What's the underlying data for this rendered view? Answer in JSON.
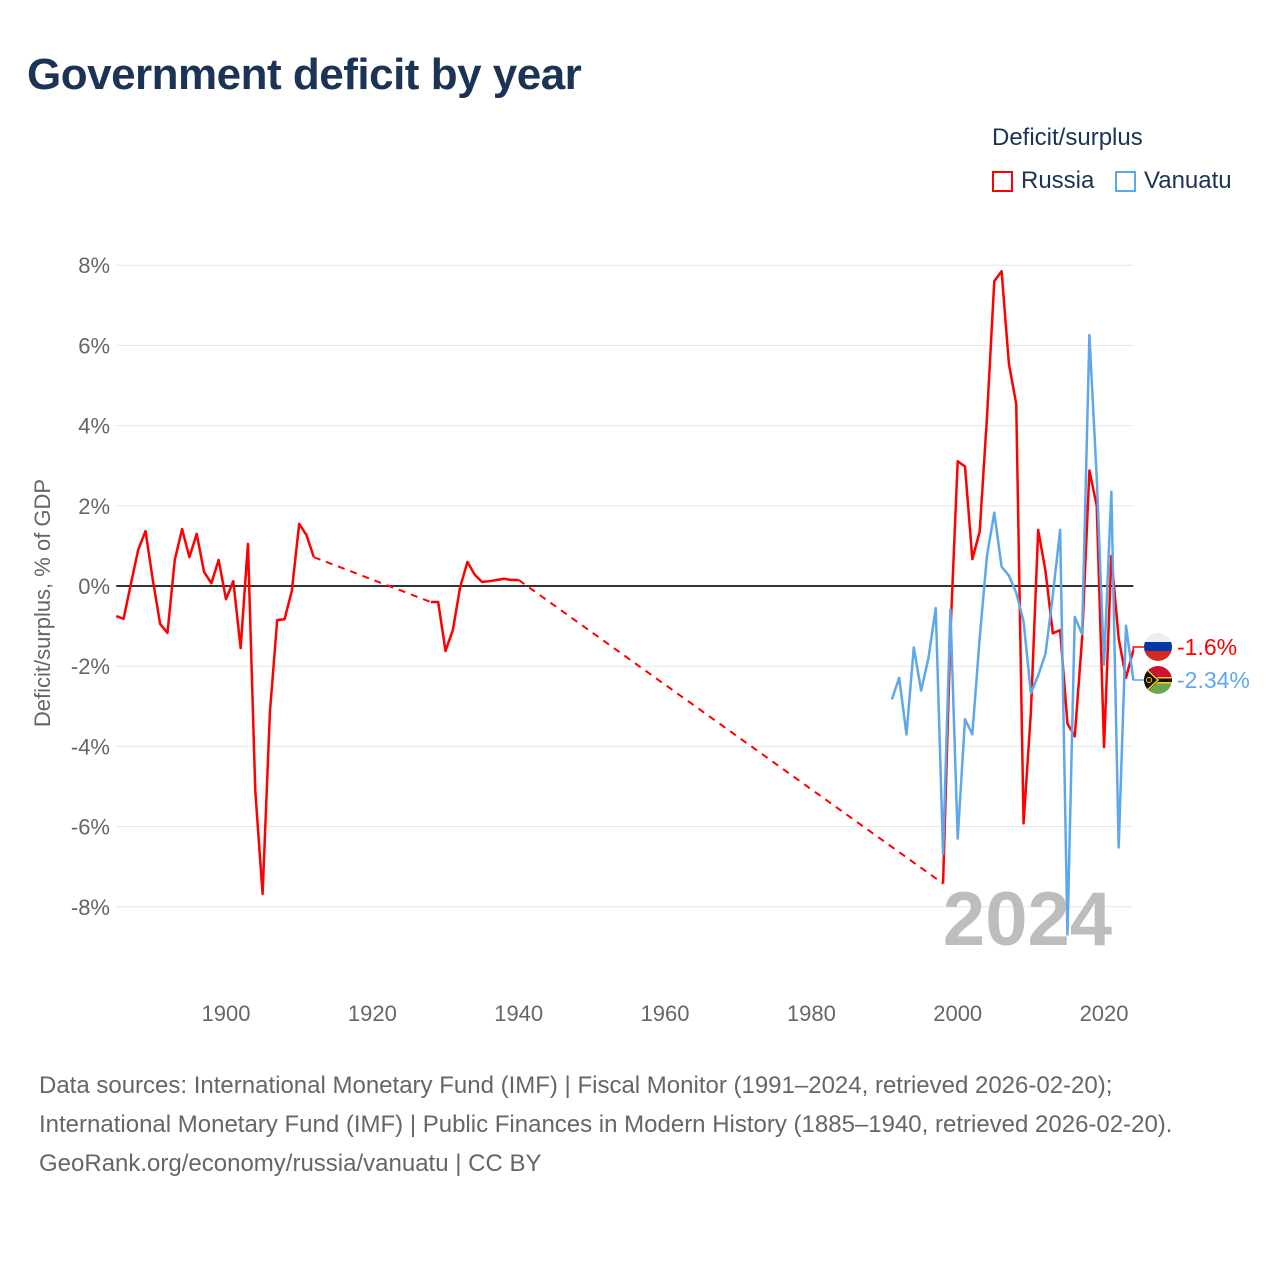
{
  "title": "Government deficit by year",
  "legend": {
    "title": "Deficit/surplus",
    "items": [
      {
        "name": "Russia",
        "color": "#ff0000"
      },
      {
        "name": "Vanuatu",
        "color": "#5ea8ea"
      }
    ]
  },
  "footer": {
    "sources": "Data sources: International Monetary Fund (IMF) | Fiscal Monitor (1991–2024, retrieved 2026-02-20); International Monetary Fund (IMF) | Public Finances in Modern History (1885–1940, retrieved 2026-02-20).",
    "credit": "GeoRank.org/economy/russia/vanuatu | CC BY"
  },
  "chart_data": {
    "type": "line",
    "title": "Government deficit by year",
    "xlabel": "",
    "ylabel": "Deficit/surplus, % of GDP",
    "xlim": [
      1885,
      2024
    ],
    "ylim": [
      -9.8,
      8.5
    ],
    "x_ticks": [
      1900,
      1920,
      1940,
      1960,
      1980,
      2000,
      2020
    ],
    "x_tick_labels": [
      "1900",
      "1920",
      "1940",
      "1960",
      "1980",
      "2000",
      "2020"
    ],
    "y_ticks": [
      8,
      6,
      4,
      2,
      0,
      -2,
      -4,
      -6,
      -8
    ],
    "y_tick_labels": [
      "8%",
      "6%",
      "4%",
      "2%",
      "0%",
      "-2%",
      "-4%",
      "-6%",
      "-8%"
    ],
    "year_watermark": "2024",
    "grid": true,
    "legend_position": "top-right",
    "series": [
      {
        "name": "Russia",
        "color": "#ff0000",
        "end_label": "-1.6%",
        "points": [
          [
            1885,
            -0.75
          ],
          [
            1886,
            -0.82
          ],
          [
            1887,
            0.05
          ],
          [
            1888,
            0.9
          ],
          [
            1889,
            1.37
          ],
          [
            1890,
            0.15
          ],
          [
            1891,
            -0.95
          ],
          [
            1892,
            -1.17
          ],
          [
            1893,
            0.65
          ],
          [
            1894,
            1.42
          ],
          [
            1895,
            0.72
          ],
          [
            1896,
            1.3
          ],
          [
            1897,
            0.35
          ],
          [
            1898,
            0.07
          ],
          [
            1899,
            0.65
          ],
          [
            1900,
            -0.33
          ],
          [
            1901,
            0.12
          ],
          [
            1902,
            -1.55
          ],
          [
            1903,
            1.05
          ],
          [
            1904,
            -5.1
          ],
          [
            1905,
            -7.68
          ],
          [
            1906,
            -3.15
          ],
          [
            1907,
            -0.85
          ],
          [
            1908,
            -0.83
          ],
          [
            1909,
            -0.12
          ],
          [
            1910,
            1.55
          ],
          [
            1911,
            1.27
          ],
          [
            1912,
            0.72
          ],
          [
            1928,
            -0.4
          ],
          [
            1929,
            -0.4
          ],
          [
            1930,
            -1.62
          ],
          [
            1931,
            -1.1
          ],
          [
            1932,
            -0.03
          ],
          [
            1933,
            0.6
          ],
          [
            1934,
            0.28
          ],
          [
            1935,
            0.1
          ],
          [
            1936,
            0.12
          ],
          [
            1937,
            0.15
          ],
          [
            1938,
            0.18
          ],
          [
            1939,
            0.15
          ],
          [
            1940,
            0.15
          ],
          [
            1998,
            -7.42
          ],
          [
            1999,
            -1.2
          ],
          [
            2000,
            3.11
          ],
          [
            2001,
            2.98
          ],
          [
            2002,
            0.67
          ],
          [
            2003,
            1.35
          ],
          [
            2004,
            4.2
          ],
          [
            2005,
            7.6
          ],
          [
            2006,
            7.85
          ],
          [
            2007,
            5.54
          ],
          [
            2008,
            4.54
          ],
          [
            2009,
            -5.92
          ],
          [
            2010,
            -3.16
          ],
          [
            2011,
            1.4
          ],
          [
            2012,
            0.37
          ],
          [
            2013,
            -1.18
          ],
          [
            2014,
            -1.1
          ],
          [
            2015,
            -3.43
          ],
          [
            2016,
            -3.75
          ],
          [
            2017,
            -1.31
          ],
          [
            2018,
            2.88
          ],
          [
            2019,
            2.0
          ],
          [
            2020,
            -4.02
          ],
          [
            2021,
            0.75
          ],
          [
            2022,
            -1.31
          ],
          [
            2023,
            -2.29
          ],
          [
            2024,
            -1.6
          ]
        ]
      },
      {
        "name": "Vanuatu",
        "color": "#5ea8ea",
        "end_label": "-2.34%",
        "points": [
          [
            1991,
            -2.83
          ],
          [
            1992,
            -2.29
          ],
          [
            1993,
            -3.7
          ],
          [
            1994,
            -1.53
          ],
          [
            1995,
            -2.61
          ],
          [
            1996,
            -1.8
          ],
          [
            1997,
            -0.55
          ],
          [
            1998,
            -6.68
          ],
          [
            1999,
            -0.59
          ],
          [
            2000,
            -6.3
          ],
          [
            2001,
            -3.32
          ],
          [
            2002,
            -3.7
          ],
          [
            2003,
            -1.31
          ],
          [
            2004,
            0.75
          ],
          [
            2005,
            1.83
          ],
          [
            2006,
            0.48
          ],
          [
            2007,
            0.26
          ],
          [
            2008,
            -0.17
          ],
          [
            2009,
            -0.88
          ],
          [
            2010,
            -2.67
          ],
          [
            2011,
            -2.23
          ],
          [
            2012,
            -1.69
          ],
          [
            2013,
            -0.23
          ],
          [
            2014,
            1.4
          ],
          [
            2015,
            -8.69
          ],
          [
            2016,
            -0.77
          ],
          [
            2017,
            -1.2
          ],
          [
            2018,
            6.26
          ],
          [
            2019,
            2.7
          ],
          [
            2020,
            -1.96
          ],
          [
            2021,
            2.35
          ],
          [
            2022,
            -6.52
          ],
          [
            2023,
            -0.99
          ],
          [
            2024,
            -2.34
          ]
        ]
      }
    ]
  }
}
